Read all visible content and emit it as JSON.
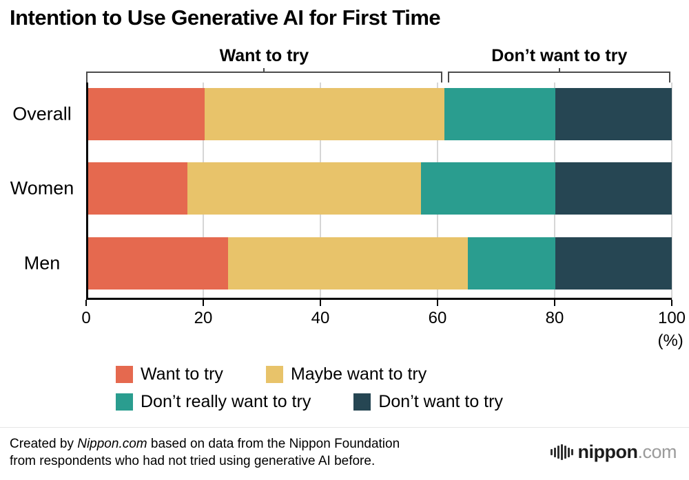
{
  "brackets": [
    {
      "label": "Want to try",
      "start": 0,
      "end": 60.8
    },
    {
      "label": "Don’t want to try",
      "start": 61.8,
      "end": 99.8
    }
  ],
  "legend_rows": [
    [
      0,
      1
    ],
    [
      2,
      3
    ]
  ],
  "chart_data": {
    "type": "bar",
    "orientation": "horizontal",
    "stacked": true,
    "title": "Intention to Use Generative AI for First Time",
    "categories": [
      "Overall",
      "Women",
      "Men"
    ],
    "series": [
      {
        "name": "Want to try",
        "color": "#e5694f",
        "values": [
          20,
          17,
          24
        ]
      },
      {
        "name": "Maybe want to try",
        "color": "#e8c36a",
        "values": [
          41,
          40,
          41
        ]
      },
      {
        "name": "Don’t really want to try",
        "color": "#2a9d8f",
        "values": [
          19,
          23,
          15
        ]
      },
      {
        "name": "Don’t want to try",
        "color": "#264653",
        "values": [
          20,
          20,
          20
        ]
      }
    ],
    "xlabel": "(%)",
    "xlim": [
      0,
      100
    ],
    "xticks": [
      0,
      20,
      40,
      60,
      80,
      100
    ],
    "grid": true,
    "legend_position": "bottom"
  },
  "footer": {
    "credit_prefix": "Created by ",
    "credit_source": "Nippon.com",
    "credit_suffix": " based on data from the Nippon Foundation",
    "credit_line2": "from respondents who had not tried using generative AI before.",
    "logo_text": "nippon",
    "logo_suffix": ".com"
  }
}
